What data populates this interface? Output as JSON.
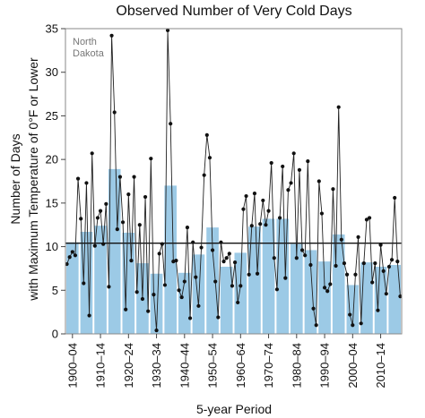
{
  "chart_data": {
    "type": "bar",
    "title": "Observed Number of Very Cold Days",
    "ylabel_line1": "Number of Days",
    "ylabel_line2": "with Maximum Temperature of 0°F or Lower",
    "xlabel": "5-year Period",
    "annotation_line1": "North",
    "annotation_line2": "Dakota",
    "ylim": [
      0,
      35
    ],
    "yticks": [
      0,
      5,
      10,
      15,
      20,
      25,
      30,
      35
    ],
    "grid": false,
    "colors": {
      "bars": "#9ccae6",
      "line": "#222222",
      "average": "#111111"
    },
    "categories": [
      "1900–04",
      "1905–09",
      "1910–14",
      "1915–19",
      "1920–24",
      "1925–29",
      "1930–34",
      "1935–39",
      "1940–44",
      "1945–49",
      "1950–54",
      "1955–59",
      "1960–64",
      "1965–69",
      "1970–74",
      "1975–79",
      "1980–84",
      "1985–89",
      "1990–94",
      "1995–99",
      "2000–04",
      "2005–09",
      "2010–14",
      "2015–19"
    ],
    "tick_labels": [
      "1900–04",
      "1910–14",
      "1920–24",
      "1930–34",
      "1940–44",
      "1950–54",
      "1960–64",
      "1970–74",
      "1980–84",
      "1990–94",
      "2000–04",
      "2010–14"
    ],
    "bar_values": [
      10.5,
      11.7,
      12.4,
      18.9,
      11.6,
      8.1,
      6.9,
      17.0,
      7.0,
      9.1,
      12.2,
      7.7,
      9.3,
      12.3,
      13.2,
      13.2,
      10.3,
      9.6,
      8.3,
      11.4,
      5.6,
      8.2,
      7.7,
      7.9
    ],
    "average": 10.4,
    "annual": {
      "start_year": 1900,
      "values": [
        8.0,
        8.8,
        9.4,
        9.0,
        17.8,
        13.2,
        5.8,
        17.3,
        2.1,
        20.7,
        10.1,
        13.3,
        14.1,
        10.3,
        14.9,
        5.4,
        34.2,
        25.4,
        12.0,
        18.0,
        12.8,
        2.8,
        16.0,
        8.4,
        18.0,
        4.8,
        12.5,
        4.0,
        15.7,
        2.6,
        20.1,
        4.5,
        0.4,
        9.2,
        10.3,
        5.6,
        34.8,
        24.1,
        8.3,
        8.4,
        5.0,
        4.2,
        6.0,
        12.2,
        1.8,
        10.5,
        6.5,
        3.2,
        9.9,
        18.2,
        22.8,
        20.2,
        9.6,
        6.0,
        1.9,
        10.5,
        8.3,
        8.7,
        9.2,
        5.5,
        8.2,
        3.6,
        5.5,
        14.3,
        15.8,
        6.8,
        12.4,
        16.1,
        6.9,
        12.6,
        15.3,
        12.5,
        14.1,
        19.6,
        8.7,
        5.1,
        13.3,
        19.2,
        6.4,
        16.5,
        17.3,
        20.7,
        8.7,
        18.8,
        9.6,
        9.0,
        19.8,
        7.9,
        2.9,
        1.0,
        17.5,
        13.8,
        5.3,
        4.9,
        5.7,
        16.6,
        7.8,
        26.0,
        10.8,
        8.1,
        6.8,
        2.2,
        1.0,
        6.8,
        11.1,
        1.2,
        8.1,
        13.1,
        13.3,
        5.9,
        8.1,
        2.7,
        10.2,
        7.2,
        4.6,
        7.7,
        8.5,
        15.6,
        8.3,
        4.3
      ]
    }
  }
}
